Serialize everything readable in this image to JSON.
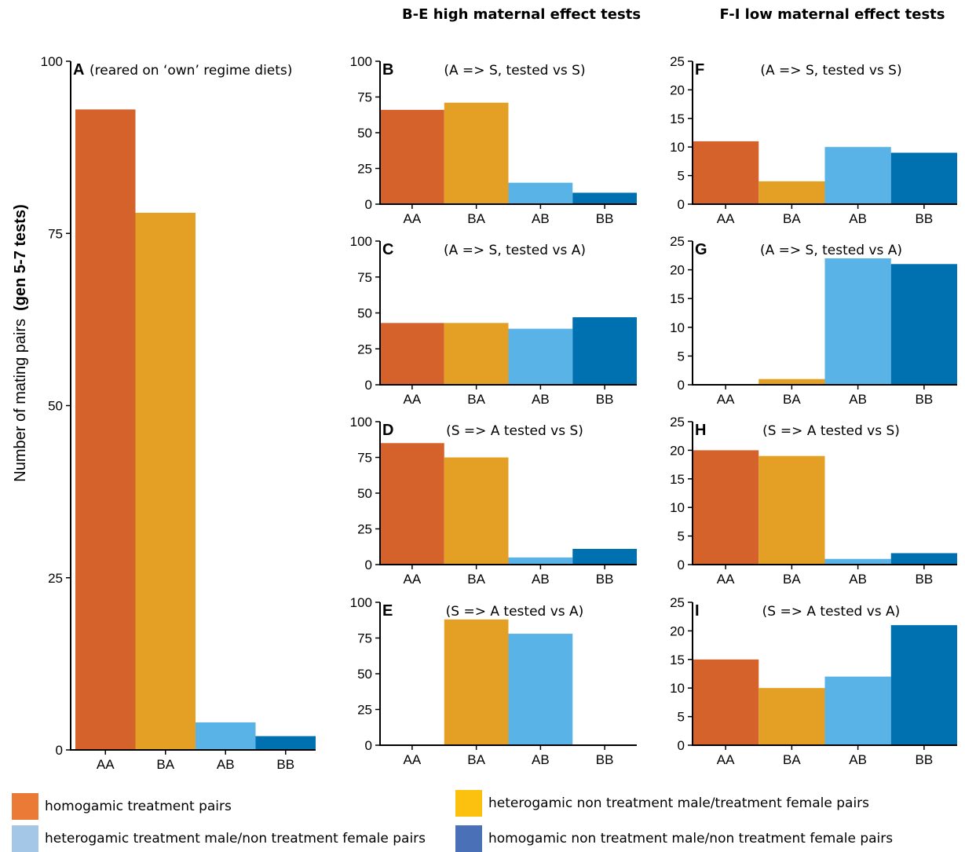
{
  "header": {
    "left": "B-E high maternal effect tests",
    "right": "F-I low maternal effect tests"
  },
  "y_axis_title_main": "Number of mating pairs",
  "y_axis_title_bold": "(gen 5-7 tests)",
  "colors": {
    "AA": "#d4622a",
    "BA": "#e3a024",
    "AB": "#5ab3e6",
    "BB": "#0071b0"
  },
  "legend": [
    {
      "label": "homogamic treatment pairs",
      "color": "#ec7a37"
    },
    {
      "label": "heterogamic treatment male/non treatment female pairs",
      "color": "#a4c6e7"
    },
    {
      "label": "heterogamic non treatment male/treatment female pairs",
      "color": "#fcc10e"
    },
    {
      "label": "homogamic non treatment male/non treatment female pairs",
      "color": "#4a70b8"
    }
  ],
  "chart_data": [
    {
      "type": "bar",
      "panel": "A",
      "subtitle": "(reared on ‘own’ regime diets)",
      "categories": [
        "AA",
        "BA",
        "AB",
        "BB"
      ],
      "values": [
        93,
        78,
        4,
        2
      ],
      "ylim": [
        0,
        100
      ],
      "yticks": [
        0,
        25,
        50,
        75,
        100
      ]
    },
    {
      "type": "bar",
      "panel": "B",
      "subtitle": "(A => S, tested vs S)",
      "categories": [
        "AA",
        "BA",
        "AB",
        "BB"
      ],
      "values": [
        66,
        71,
        15,
        8
      ],
      "ylim": [
        0,
        100
      ],
      "yticks": [
        0,
        25,
        50,
        75,
        100
      ]
    },
    {
      "type": "bar",
      "panel": "C",
      "subtitle": "(A => S, tested vs A)",
      "categories": [
        "AA",
        "BA",
        "AB",
        "BB"
      ],
      "values": [
        43,
        43,
        39,
        47
      ],
      "ylim": [
        0,
        100
      ],
      "yticks": [
        0,
        25,
        50,
        75,
        100
      ]
    },
    {
      "type": "bar",
      "panel": "D",
      "subtitle": "(S => A tested vs S)",
      "categories": [
        "AA",
        "BA",
        "AB",
        "BB"
      ],
      "values": [
        85,
        75,
        5,
        11
      ],
      "ylim": [
        0,
        100
      ],
      "yticks": [
        0,
        25,
        50,
        75,
        100
      ]
    },
    {
      "type": "bar",
      "panel": "E",
      "subtitle": "(S => A tested vs A)",
      "categories": [
        "AA",
        "BA",
        "AB",
        "BB"
      ],
      "values": [
        0,
        88,
        78,
        0
      ],
      "ylim": [
        0,
        100
      ],
      "yticks": [
        0,
        25,
        50,
        75,
        100
      ]
    },
    {
      "type": "bar",
      "panel": "F",
      "subtitle": "(A => S, tested vs S)",
      "categories": [
        "AA",
        "BA",
        "AB",
        "BB"
      ],
      "values": [
        11,
        4,
        10,
        9
      ],
      "ylim": [
        0,
        25
      ],
      "yticks": [
        0,
        5,
        10,
        15,
        20,
        25
      ]
    },
    {
      "type": "bar",
      "panel": "G",
      "subtitle": "(A => S, tested vs A)",
      "categories": [
        "AA",
        "BA",
        "AB",
        "BB"
      ],
      "values": [
        0,
        1,
        22,
        21
      ],
      "ylim": [
        0,
        25
      ],
      "yticks": [
        0,
        5,
        10,
        15,
        20,
        25
      ]
    },
    {
      "type": "bar",
      "panel": "H",
      "subtitle": "(S => A tested vs S)",
      "categories": [
        "AA",
        "BA",
        "AB",
        "BB"
      ],
      "values": [
        20,
        19,
        1,
        2
      ],
      "ylim": [
        0,
        25
      ],
      "yticks": [
        0,
        5,
        10,
        15,
        20,
        25
      ]
    },
    {
      "type": "bar",
      "panel": "I",
      "subtitle": "(S => A tested vs A)",
      "categories": [
        "AA",
        "BA",
        "AB",
        "BB"
      ],
      "values": [
        15,
        10,
        12,
        21
      ],
      "ylim": [
        0,
        25
      ],
      "yticks": [
        0,
        5,
        10,
        15,
        20,
        25
      ]
    }
  ]
}
